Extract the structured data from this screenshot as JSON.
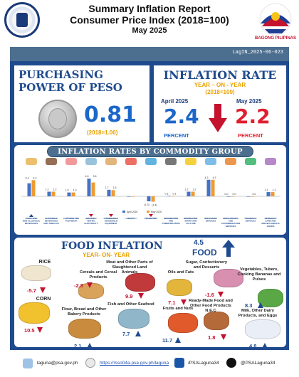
{
  "header": {
    "title_line1": "Summary Inflation Report",
    "title_line2": "Consumer Price Index (2018=100)",
    "period": "May 2025",
    "bagong_pilipinas": "BAGONG PILIPINAS",
    "release_id": "LagIN_2025-06-023"
  },
  "purchasing_power": {
    "title_line1": "PURCHASING",
    "title_line2": "POWER OF PESO",
    "value": "0.81",
    "base": "(2018=1.00)"
  },
  "inflation_rate": {
    "title": "INFLATION RATE",
    "sub1": "YEAR – ON - YEAR",
    "sub2": "(2018=100)",
    "prev_month": "April 2025",
    "prev_value": "2.4",
    "prev_unit": "PERCENT",
    "cur_month": "May 2025",
    "cur_value": "2.2",
    "cur_unit": "PERCENT",
    "direction": "down"
  },
  "commodity_section_title": "INFLATION RATES BY COMMODITY GROUP",
  "chart_data": {
    "type": "bar",
    "series": [
      {
        "name": "April 2025",
        "color": "#4472c4",
        "values": [
          3.4,
          1.2,
          1.0,
          4.6,
          1.7,
          0.0,
          -1.3,
          0.1,
          1.2,
          4.3,
          0.0,
          0.0,
          1.1
        ]
      },
      {
        "name": "May 2025",
        "color": "#ed9b33",
        "values": [
          4.2,
          1.2,
          1.0,
          3.6,
          1.6,
          0.0,
          -1.4,
          0.1,
          1.2,
          4.3,
          0.0,
          0.0,
          1.1
        ]
      }
    ],
    "categories": [
      "FOOD AND NON-ALCOHOLIC BEVERAGES",
      "ALCOHOLIC BEVERAGES AND TOBACCO",
      "CLOTHING AND FOOTWEAR",
      "HOUSING, WATER, ELECTRICITY",
      "FURNISHINGS, HOUSEHOLD EQUIPMENT",
      "HEALTH",
      "TRANSPORT",
      "INFORMATION AND COMMUNICATION",
      "RECREATION, SPORT AND CULTURE",
      "EDUCATION SERVICES",
      "RESTAURANTS AND ACCOMMODATION SERVICES",
      "FINANCIAL SERVICES",
      "PERSONAL CARE AND MISCELLANEOUS GOODS"
    ],
    "data_labels_april": [
      "3.4",
      "1.2",
      "1.0",
      "4.6",
      "1.7",
      "",
      "(1.3)",
      "0.1",
      "1.2",
      "4.3",
      "0.0",
      "",
      "1.1"
    ],
    "data_labels_may": [
      "4.2",
      "1.2",
      "1.0",
      "3.6",
      "1.6",
      "",
      "(1.4)",
      "0.1",
      "1.2",
      "4.3",
      "0.0",
      "0.0",
      "1.1"
    ],
    "arrows": [
      "up",
      "none",
      "none",
      "down",
      "down",
      "none",
      "down",
      "none",
      "none",
      "none",
      "none",
      "none",
      "none"
    ],
    "ylim": [
      -2,
      6
    ],
    "legend_position": "bottom-center"
  },
  "food_inflation": {
    "title": "FOOD INFLATION",
    "subtitle": "YEAR- ON- YEAR",
    "value": "4.5",
    "label": "FOOD",
    "direction": "up",
    "items": [
      {
        "name": "RICE",
        "value": "-5.7",
        "dir": "down",
        "color": "#f0e6d0"
      },
      {
        "name": "CORN",
        "value": "10.5",
        "dir": "down",
        "color": "#f2c12e"
      },
      {
        "name": "Cereals and Cereal Products",
        "value": "-2.8",
        "dir": "down",
        "color": "#d9a35b"
      },
      {
        "name": "Flour, Bread and Other Bakery Products",
        "value": "2.1",
        "dir": "up",
        "color": "#c98b3e"
      },
      {
        "name": "Meat and Other Parts of Slaughtered Land Animals",
        "value": "9.9",
        "dir": "down",
        "color": "#c0393b"
      },
      {
        "name": "Fish and Other Seafood",
        "value": "7.7",
        "dir": "up",
        "color": "#8fb6c9"
      },
      {
        "name": "Oils and Fats",
        "value": "7.1",
        "dir": "down",
        "color": "#e3b53a"
      },
      {
        "name": "Fruits and Nuts",
        "value": "11.7",
        "dir": "up",
        "color": "#e05a2b"
      },
      {
        "name": "Sugar, Confectionery and Desserts",
        "value": "-1.6",
        "dir": "down",
        "color": "#d88fb0"
      },
      {
        "name": "Ready-Made Food and Other Food Products N.E.C",
        "value": "1.8",
        "dir": "down",
        "color": "#b56a3a"
      },
      {
        "name": "Vegetables, Tubers, Cooking Bananas and Pulses",
        "value": "8.3",
        "dir": "up",
        "color": "#5aa845"
      },
      {
        "name": "Milk, Other Dairy Products, and Eggs",
        "value": "4.8",
        "dir": "up",
        "color": "#e9eef7"
      }
    ]
  },
  "footer": {
    "email": "laguna@psa.gov.ph",
    "website": "https://rsso04a.psa.gov.ph/laguna",
    "facebook": "/PSALaguna34",
    "x_handle": "@PSALaguna34"
  }
}
